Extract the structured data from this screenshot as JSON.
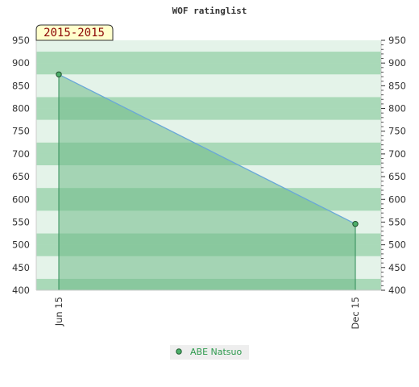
{
  "chart_data": {
    "type": "area",
    "title": "WOF ratinglist",
    "season_label": "2015-2015",
    "x": [
      "Jun 15",
      "Dec 15"
    ],
    "series": [
      {
        "name": "ABE Natsuo",
        "values": [
          875,
          546
        ]
      }
    ],
    "ylim": [
      400,
      950
    ],
    "yticks": [
      400,
      450,
      500,
      550,
      600,
      650,
      700,
      750,
      800,
      850,
      900,
      950
    ],
    "ytick_labels": [
      "400",
      "450",
      "500",
      "550",
      "600",
      "650",
      "700",
      "750",
      "800",
      "850",
      "900",
      "950"
    ],
    "y_axis_right": true,
    "grid": "horizontal bands",
    "legend": "bottom-center",
    "colors": {
      "area_fill": "#77c08f",
      "line": "#6aa8d8",
      "marker": "#4caf6a",
      "band_dark": "#a9d9b8",
      "band_light": "#e4f3e9",
      "legend_text": "#2e9a4e",
      "season_box": "#ffffcc"
    }
  }
}
